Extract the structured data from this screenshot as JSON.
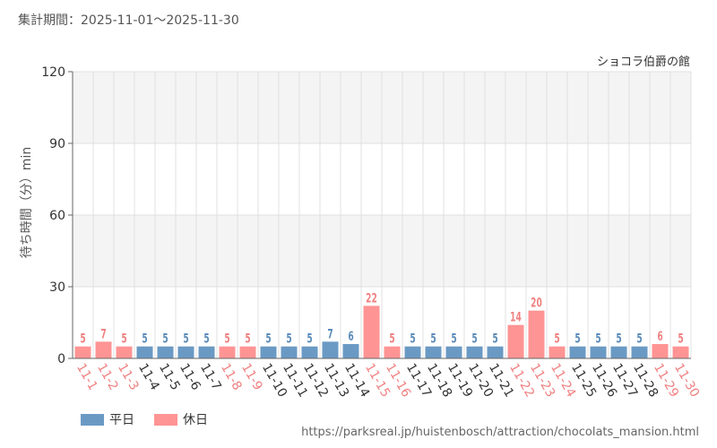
{
  "header": {
    "period": "集計期間：2025-11-01～2025-11-30"
  },
  "footer": {
    "url": "https://parksreal.jp/huistenbosch/attraction/chocolats_mansion.html"
  },
  "colors": {
    "weekday": "#6a9ac4",
    "holiday": "#ff9494",
    "holiday_text": "#f08080",
    "weekday_text": "#5b8bb8",
    "axis_text": "#333333",
    "grid": "#e0e0e0",
    "band": "#f4f4f4"
  },
  "legend": {
    "weekday_label": "平日",
    "holiday_label": "休日"
  },
  "chart_data": {
    "type": "bar",
    "title": "ショコラ伯爵の館",
    "ylabel": "待ち時間（分）min",
    "xlabel": "",
    "ylim": [
      0,
      120
    ],
    "yticks": [
      0,
      30,
      60,
      90,
      120
    ],
    "grid": true,
    "legend_position": "bottom-left",
    "categories": [
      "11-1",
      "11-2",
      "11-3",
      "11-4",
      "11-5",
      "11-6",
      "11-7",
      "11-8",
      "11-9",
      "11-10",
      "11-11",
      "11-12",
      "11-13",
      "11-14",
      "11-15",
      "11-16",
      "11-17",
      "11-18",
      "11-19",
      "11-20",
      "11-21",
      "11-22",
      "11-23",
      "11-24",
      "11-25",
      "11-26",
      "11-27",
      "11-28",
      "11-29",
      "11-30"
    ],
    "values": [
      5,
      7,
      5,
      5,
      5,
      5,
      5,
      5,
      5,
      5,
      5,
      5,
      7,
      6,
      22,
      5,
      5,
      5,
      5,
      5,
      5,
      14,
      20,
      5,
      5,
      5,
      5,
      5,
      6,
      5
    ],
    "day_type": [
      "holiday",
      "holiday",
      "holiday",
      "weekday",
      "weekday",
      "weekday",
      "weekday",
      "holiday",
      "holiday",
      "weekday",
      "weekday",
      "weekday",
      "weekday",
      "weekday",
      "holiday",
      "holiday",
      "weekday",
      "weekday",
      "weekday",
      "weekday",
      "weekday",
      "holiday",
      "holiday",
      "holiday",
      "weekday",
      "weekday",
      "weekday",
      "weekday",
      "holiday",
      "holiday"
    ]
  }
}
